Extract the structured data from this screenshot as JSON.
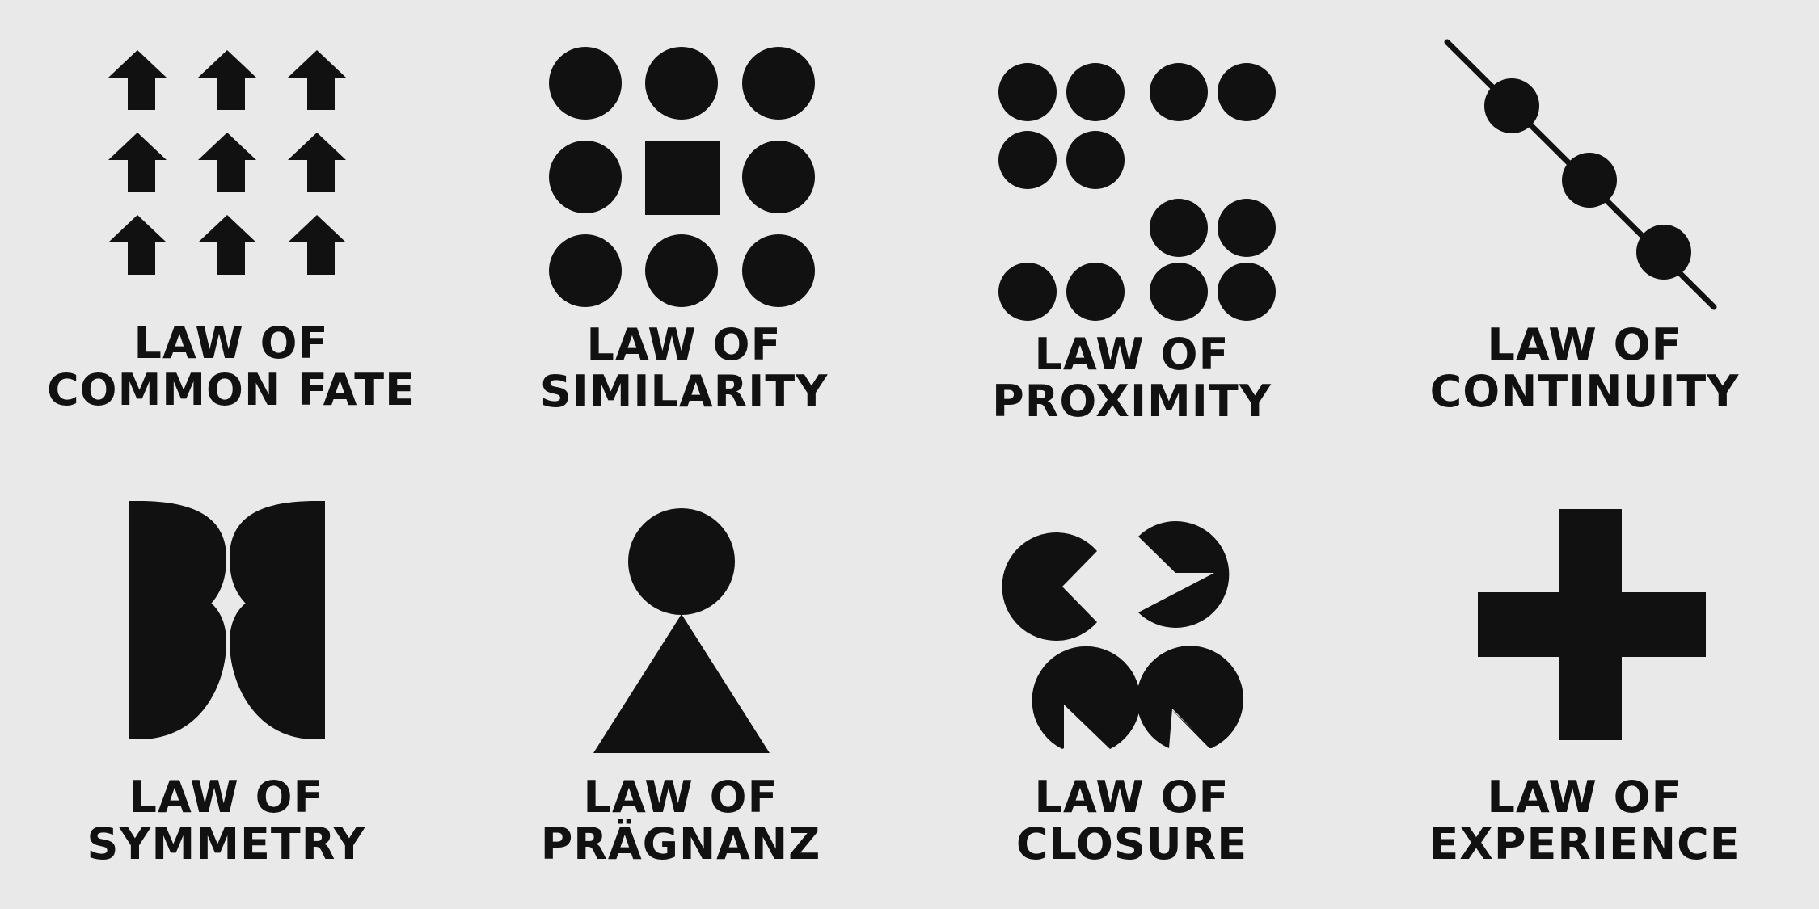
{
  "colors": {
    "background": "#e9e9e9",
    "ink": "#111111"
  },
  "laws": [
    {
      "id": "common-fate",
      "line1": "LAW OF",
      "line2": "COMMON FATE",
      "icon": "nine-up-arrows-icon"
    },
    {
      "id": "similarity",
      "line1": "LAW OF",
      "line2": "SIMILARITY",
      "icon": "circles-with-square-icon"
    },
    {
      "id": "proximity",
      "line1": "LAW OF",
      "line2": "PROXIMITY",
      "icon": "grouped-dots-icon"
    },
    {
      "id": "continuity",
      "line1": "LAW OF",
      "line2": "CONTINUITY",
      "icon": "dots-on-line-icon"
    },
    {
      "id": "symmetry",
      "line1": "LAW OF",
      "line2": "SYMMETRY",
      "icon": "mirrored-brackets-icon"
    },
    {
      "id": "pragnanz",
      "line1": "LAW OF",
      "line2": "PRÄGNANZ",
      "icon": "circle-over-triangle-icon"
    },
    {
      "id": "closure",
      "line1": "LAW OF",
      "line2": "CLOSURE",
      "icon": "pacman-circles-icon"
    },
    {
      "id": "experience",
      "line1": "LAW OF",
      "line2": "EXPERIENCE",
      "icon": "plus-cross-icon"
    }
  ]
}
